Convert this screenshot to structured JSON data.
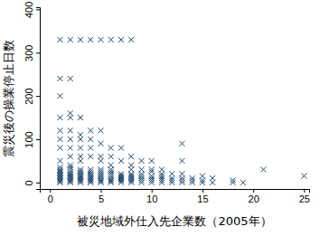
{
  "chart_data": {
    "type": "scatter",
    "x_label": "被災地域外仕入先企業数（2005年）",
    "y_label": "震災後の操業停止日数",
    "color": "#1a476f",
    "marker": "x",
    "x": [
      1,
      1,
      1,
      1,
      1,
      1,
      1,
      1,
      1,
      1,
      1,
      1,
      1,
      1,
      1,
      1,
      1,
      1,
      1,
      1,
      2,
      2,
      2,
      2,
      2,
      2,
      2,
      2,
      2,
      2,
      2,
      2,
      2,
      2,
      2,
      2,
      2,
      2,
      2,
      2,
      3,
      3,
      3,
      3,
      3,
      3,
      3,
      3,
      3,
      3,
      3,
      3,
      3,
      3,
      3,
      3,
      3,
      4,
      4,
      4,
      4,
      4,
      4,
      4,
      4,
      4,
      4,
      4,
      4,
      4,
      4,
      5,
      5,
      5,
      5,
      5,
      5,
      5,
      5,
      5,
      5,
      5,
      5,
      5,
      5,
      6,
      6,
      6,
      6,
      6,
      6,
      6,
      6,
      6,
      6,
      6,
      6,
      7,
      7,
      7,
      7,
      7,
      7,
      7,
      7,
      7,
      8,
      8,
      8,
      8,
      8,
      8,
      8,
      8,
      8,
      8,
      9,
      9,
      9,
      9,
      9,
      9,
      9,
      10,
      10,
      10,
      10,
      10,
      10,
      10,
      11,
      11,
      11,
      11,
      11,
      11,
      12,
      12,
      12,
      12,
      13,
      13,
      13,
      13,
      13,
      13,
      14,
      14,
      14,
      15,
      15,
      15,
      16,
      16,
      18,
      18,
      19,
      21,
      25
    ],
    "values": [
      0,
      3,
      6,
      9,
      12,
      15,
      18,
      21,
      24,
      27,
      30,
      35,
      50,
      80,
      100,
      120,
      150,
      200,
      240,
      330,
      0,
      3,
      6,
      9,
      12,
      15,
      18,
      21,
      25,
      30,
      35,
      40,
      60,
      80,
      100,
      120,
      150,
      160,
      240,
      330,
      0,
      3,
      6,
      9,
      12,
      15,
      18,
      22,
      26,
      30,
      50,
      60,
      80,
      100,
      110,
      150,
      330,
      0,
      3,
      6,
      9,
      12,
      16,
      20,
      25,
      30,
      60,
      80,
      100,
      120,
      330,
      0,
      3,
      6,
      10,
      14,
      18,
      22,
      26,
      30,
      50,
      60,
      90,
      120,
      330,
      0,
      3,
      6,
      10,
      15,
      20,
      25,
      30,
      40,
      60,
      80,
      330,
      0,
      4,
      8,
      12,
      16,
      20,
      50,
      80,
      330,
      0,
      4,
      8,
      12,
      16,
      20,
      30,
      40,
      60,
      330,
      0,
      5,
      10,
      15,
      20,
      30,
      50,
      0,
      5,
      10,
      15,
      25,
      30,
      50,
      0,
      5,
      10,
      15,
      20,
      30,
      0,
      5,
      10,
      20,
      0,
      5,
      10,
      20,
      50,
      90,
      0,
      5,
      10,
      0,
      5,
      15,
      0,
      10,
      0,
      5,
      0,
      30,
      15
    ],
    "xlim": [
      -1,
      25.5
    ],
    "xticks": [
      0,
      5,
      10,
      15,
      20,
      25
    ],
    "ylim": [
      -15,
      405
    ],
    "yticks": [
      0,
      100,
      200,
      300,
      400
    ]
  }
}
